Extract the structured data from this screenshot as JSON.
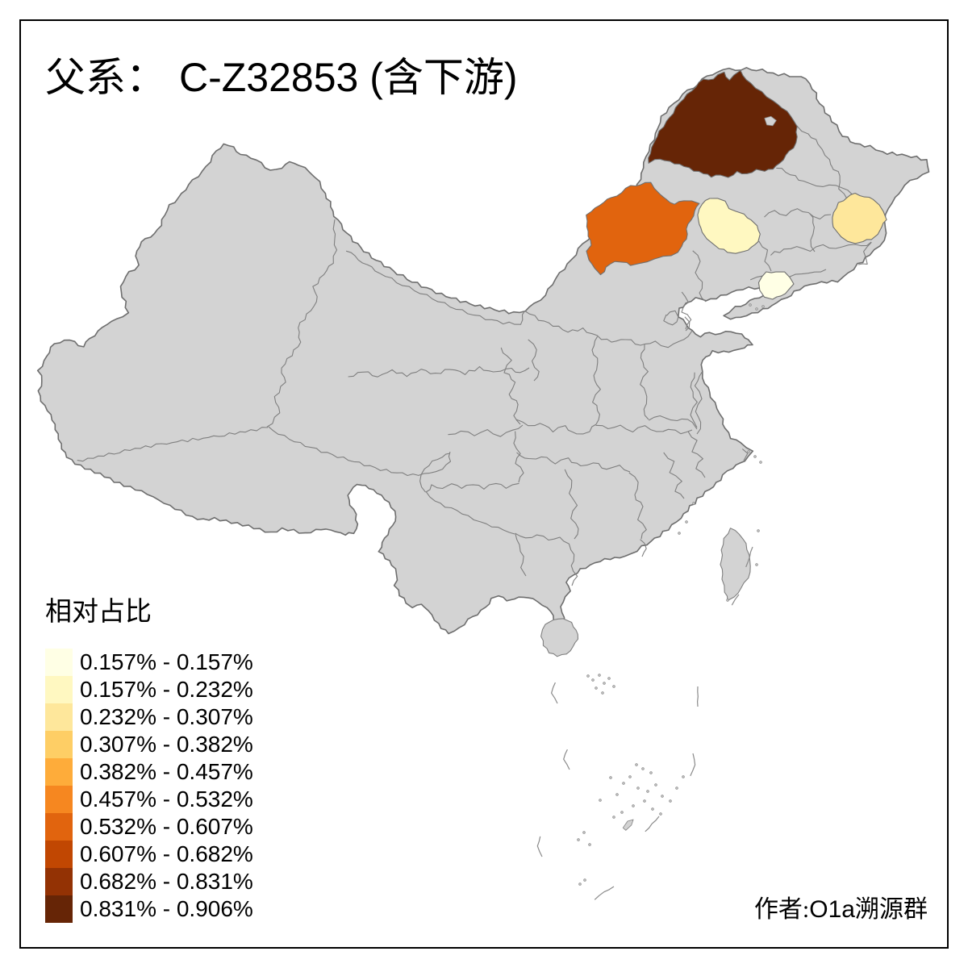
{
  "title": {
    "prefix": "父系：",
    "main": "C-Z32853 (含下游)"
  },
  "legend": {
    "title": "相对占比",
    "classes": [
      {
        "label": "0.157% - 0.157%",
        "color": "#FFFFE5"
      },
      {
        "label": "0.157% - 0.232%",
        "color": "#FFF8C1"
      },
      {
        "label": "0.232% - 0.307%",
        "color": "#FEE79B"
      },
      {
        "label": "0.307% - 0.382%",
        "color": "#FECE65"
      },
      {
        "label": "0.382% - 0.457%",
        "color": "#FEAC3A"
      },
      {
        "label": "0.457% - 0.532%",
        "color": "#F68720"
      },
      {
        "label": "0.532% - 0.607%",
        "color": "#E1640E"
      },
      {
        "label": "0.607% - 0.682%",
        "color": "#C14702"
      },
      {
        "label": "0.682% - 0.831%",
        "color": "#933204"
      },
      {
        "label": "0.831% - 0.906%",
        "color": "#662506"
      }
    ]
  },
  "attribution": {
    "prefix": "作者:",
    "latin": "O1a",
    "suffix": "溯源群"
  },
  "map": {
    "base_fill": "#D3D3D3",
    "border_color": "#7F7F7F",
    "outline_color": "#6E6E6E",
    "background": "#FFFFFF",
    "regions": [
      {
        "id": "ne-far-north",
        "class_index": 9
      },
      {
        "id": "ne-west",
        "class_index": 6
      },
      {
        "id": "ne-central",
        "class_index": 1
      },
      {
        "id": "ne-east",
        "class_index": 2
      },
      {
        "id": "ne-coastal",
        "class_index": 0
      }
    ]
  },
  "chart_data": {
    "type": "heatmap",
    "subtype": "choropleth-map-of-china",
    "title": "父系： C-Z32853 (含下游)",
    "legend_title": "相对占比",
    "legend_position": "bottom-left",
    "class_breaks": [
      "0.157% - 0.157%",
      "0.157% - 0.232%",
      "0.232% - 0.307%",
      "0.307% - 0.382%",
      "0.382% - 0.457%",
      "0.457% - 0.532%",
      "0.532% - 0.607%",
      "0.607% - 0.682%",
      "0.682% - 0.831%",
      "0.831% - 0.906%"
    ],
    "palette": [
      "#FFFFE5",
      "#FFF8C1",
      "#FEE79B",
      "#FECE65",
      "#FEAC3A",
      "#F68720",
      "#E1640E",
      "#C14702",
      "#933204",
      "#662506"
    ],
    "regions": [
      {
        "id": "ne-far-north",
        "location": "far-north Inner Mongolia / Hulunbuir area",
        "value_range": "0.831% - 0.906%"
      },
      {
        "id": "ne-west",
        "location": "eastern Inner Mongolia league southwest of it",
        "value_range": "0.532% - 0.607%"
      },
      {
        "id": "ne-central",
        "location": "west Jilin / Tongliao area",
        "value_range": "0.157% - 0.232%"
      },
      {
        "id": "ne-east",
        "location": "eastern Heilongjiang prefecture",
        "value_range": "0.232% - 0.307%"
      },
      {
        "id": "ne-coastal",
        "location": "coastal southeast Liaoning",
        "value_range": "0.157% - 0.157%"
      },
      {
        "id": "all-other-regions",
        "location": "rest of China",
        "value_range": "no data (gray)"
      }
    ],
    "annotation": "作者:O1a溯源群"
  }
}
